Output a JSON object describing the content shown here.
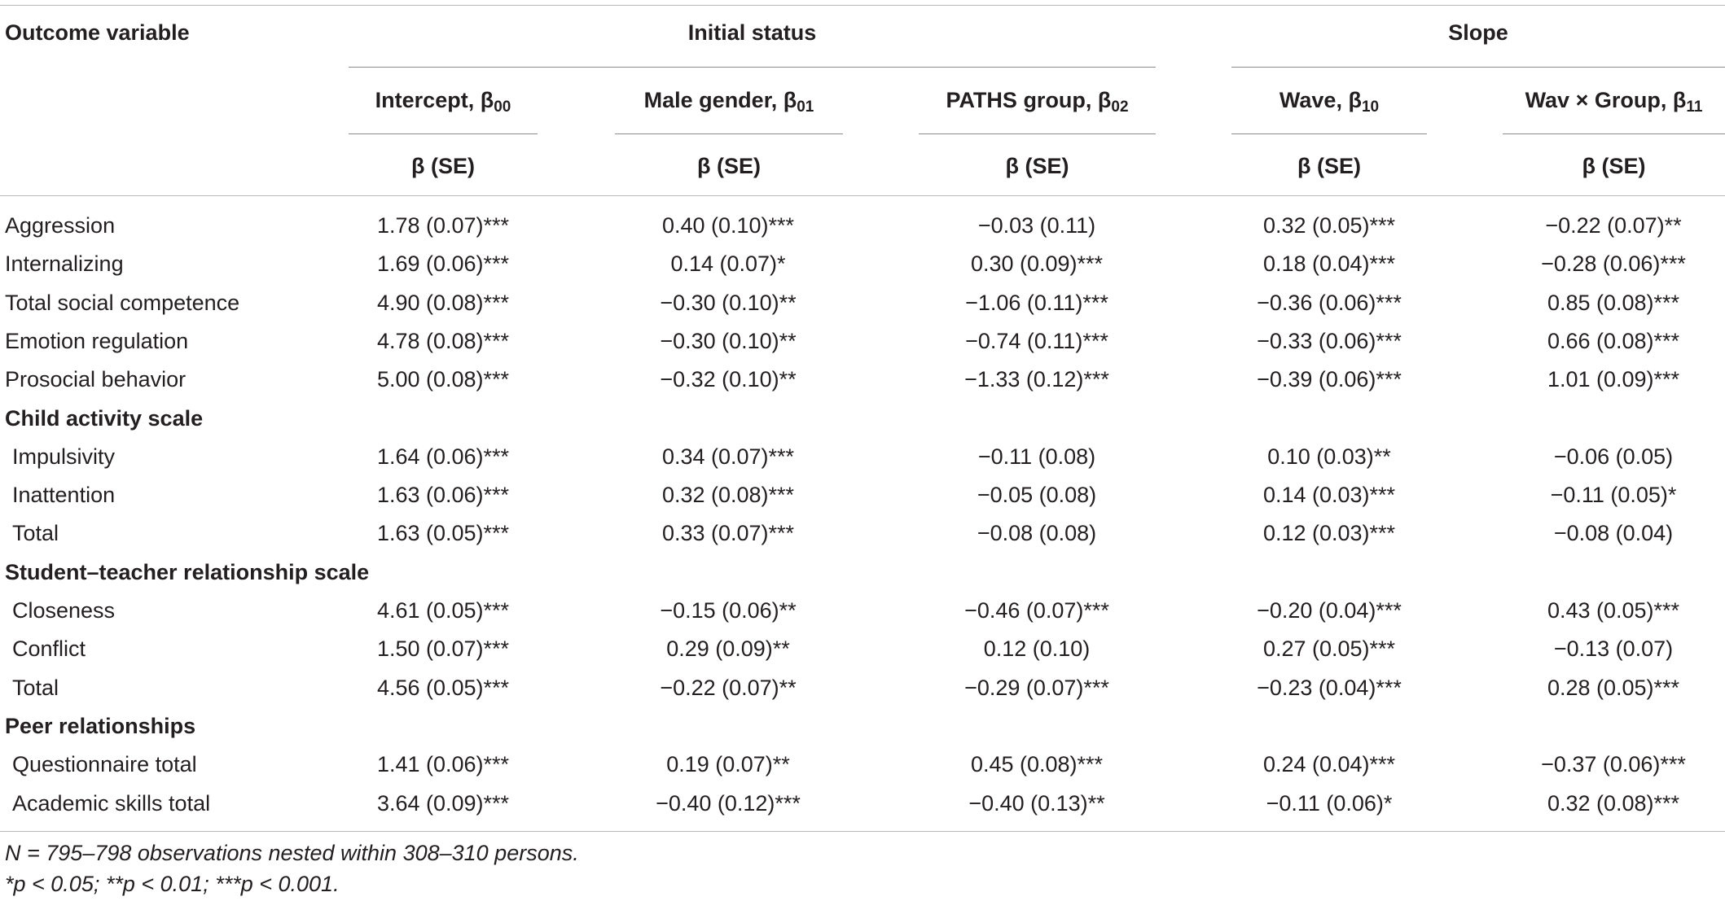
{
  "header": {
    "outcome_label": "Outcome variable",
    "groups": [
      {
        "label": "Initial status"
      },
      {
        "label": "Slope"
      }
    ],
    "columns": [
      {
        "label": "Intercept, β",
        "sub": "00"
      },
      {
        "label": "Male gender, β",
        "sub": "01"
      },
      {
        "label": "PATHS group, β",
        "sub": "02"
      },
      {
        "label": "Wave, β",
        "sub": "10"
      },
      {
        "label": "Wav × Group, β",
        "sub": "11"
      }
    ],
    "stat_label": "β (SE)"
  },
  "rows": [
    {
      "label": "Aggression",
      "type": "data",
      "values": [
        "1.78 (0.07)***",
        "0.40 (0.10)***",
        "−0.03 (0.11)",
        "0.32 (0.05)***",
        "−0.22 (0.07)**"
      ]
    },
    {
      "label": "Internalizing",
      "type": "data",
      "values": [
        "1.69 (0.06)***",
        "0.14 (0.07)*",
        "0.30 (0.09)***",
        "0.18 (0.04)***",
        "−0.28 (0.06)***"
      ]
    },
    {
      "label": "Total social competence",
      "type": "data",
      "values": [
        "4.90 (0.08)***",
        "−0.30 (0.10)**",
        "−1.06 (0.11)***",
        "−0.36 (0.06)***",
        "0.85 (0.08)***"
      ]
    },
    {
      "label": "Emotion regulation",
      "type": "data",
      "values": [
        "4.78 (0.08)***",
        "−0.30 (0.10)**",
        "−0.74 (0.11)***",
        "−0.33 (0.06)***",
        "0.66 (0.08)***"
      ]
    },
    {
      "label": "Prosocial behavior",
      "type": "data",
      "values": [
        "5.00 (0.08)***",
        "−0.32 (0.10)**",
        "−1.33 (0.12)***",
        "−0.39 (0.06)***",
        "1.01 (0.09)***"
      ]
    },
    {
      "label": "Child activity scale",
      "type": "section"
    },
    {
      "label": "Impulsivity",
      "type": "sub",
      "values": [
        "1.64 (0.06)***",
        "0.34 (0.07)***",
        "−0.11 (0.08)",
        "0.10 (0.03)**",
        "−0.06 (0.05)"
      ]
    },
    {
      "label": "Inattention",
      "type": "sub",
      "values": [
        "1.63 (0.06)***",
        "0.32 (0.08)***",
        "−0.05 (0.08)",
        "0.14 (0.03)***",
        "−0.11 (0.05)*"
      ]
    },
    {
      "label": "Total",
      "type": "sub",
      "values": [
        "1.63 (0.05)***",
        "0.33 (0.07)***",
        "−0.08 (0.08)",
        "0.12 (0.03)***",
        "−0.08 (0.04)"
      ]
    },
    {
      "label": "Student–teacher relationship scale",
      "type": "section"
    },
    {
      "label": "Closeness",
      "type": "sub",
      "values": [
        "4.61 (0.05)***",
        "−0.15 (0.06)**",
        "−0.46 (0.07)***",
        "−0.20 (0.04)***",
        "0.43 (0.05)***"
      ]
    },
    {
      "label": "Conflict",
      "type": "sub",
      "values": [
        "1.50 (0.07)***",
        "0.29 (0.09)**",
        "0.12 (0.10)",
        "0.27 (0.05)***",
        "−0.13 (0.07)"
      ]
    },
    {
      "label": "Total",
      "type": "sub",
      "values": [
        "4.56 (0.05)***",
        "−0.22 (0.07)**",
        "−0.29 (0.07)***",
        "−0.23 (0.04)***",
        "0.28 (0.05)***"
      ]
    },
    {
      "label": "Peer relationships",
      "type": "section"
    },
    {
      "label": "Questionnaire total",
      "type": "sub",
      "values": [
        "1.41 (0.06)***",
        "0.19 (0.07)**",
        "0.45 (0.08)***",
        "0.24 (0.04)***",
        "−0.37 (0.06)***"
      ]
    },
    {
      "label": "Academic skills total",
      "type": "sub",
      "values": [
        "3.64 (0.09)***",
        "−0.40 (0.12)***",
        "−0.40 (0.13)**",
        "−0.11 (0.06)*",
        "0.32 (0.08)***"
      ]
    }
  ],
  "footnotes": [
    "N = 795–798 observations nested within 308–310 persons.",
    "*p < 0.05; **p < 0.01; ***p < 0.001."
  ]
}
